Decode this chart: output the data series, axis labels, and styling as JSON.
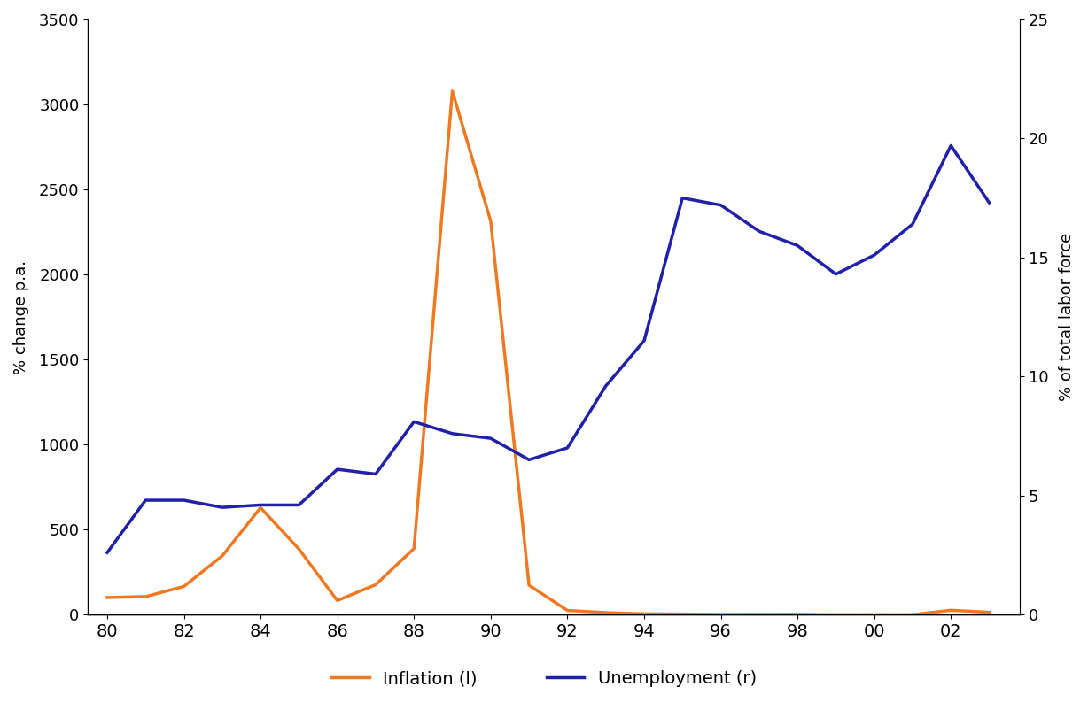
{
  "x": [
    80,
    81,
    82,
    83,
    84,
    85,
    86,
    87,
    88,
    89,
    90,
    91,
    92,
    93,
    94,
    95,
    96,
    97,
    98,
    99,
    100,
    101,
    102,
    103
  ],
  "inflation": [
    100,
    105,
    165,
    345,
    628,
    385,
    82,
    175,
    388,
    3079,
    2314,
    172,
    24,
    11,
    4,
    3,
    0.2,
    0.5,
    0.9,
    -1.2,
    -0.9,
    -1.1,
    25,
    13
  ],
  "unemployment": [
    2.6,
    4.8,
    4.8,
    4.5,
    4.6,
    4.6,
    6.1,
    5.9,
    8.1,
    7.6,
    7.4,
    6.5,
    7.0,
    9.6,
    11.5,
    17.5,
    17.2,
    16.1,
    15.5,
    14.3,
    15.1,
    16.4,
    19.7,
    17.3
  ],
  "inflation_color": "#f07820",
  "unemployment_color": "#2020aa",
  "left_ylabel": "% change p.a.",
  "right_ylabel": "% of total labor force",
  "left_ylim": [
    0,
    3500
  ],
  "right_ylim": [
    0,
    25
  ],
  "left_yticks": [
    0,
    500,
    1000,
    1500,
    2000,
    2500,
    3000,
    3500
  ],
  "right_yticks": [
    0,
    5,
    10,
    15,
    20,
    25
  ],
  "xtick_positions": [
    80,
    82,
    84,
    86,
    88,
    90,
    92,
    94,
    96,
    98,
    100,
    102
  ],
  "xtick_labels": [
    "80",
    "82",
    "84",
    "86",
    "88",
    "90",
    "92",
    "94",
    "96",
    "98",
    "00",
    "02"
  ],
  "legend_inflation": "Inflation (l)",
  "legend_unemployment": "Unemployment (r)",
  "line_width": 2.5,
  "background_color": "#ffffff",
  "xlim": [
    79.5,
    103.8
  ]
}
